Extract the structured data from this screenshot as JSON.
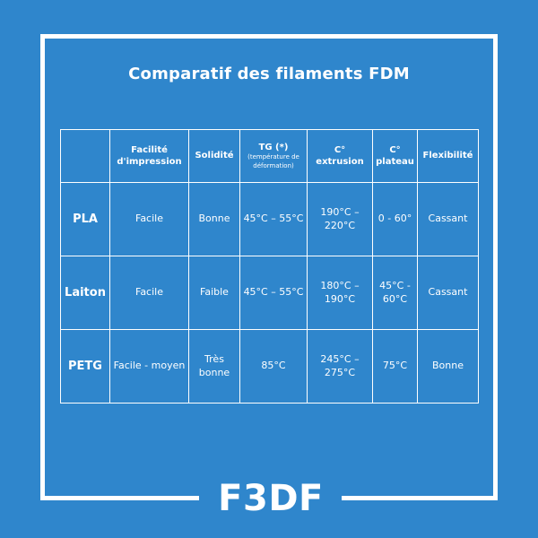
{
  "title": "Comparatif des filaments FDM",
  "table": {
    "headers": [
      {
        "label": "",
        "sub": ""
      },
      {
        "label": "Facilité d'impression",
        "sub": ""
      },
      {
        "label": "Solidité",
        "sub": ""
      },
      {
        "label": "TG (*)",
        "sub": "(température de déformation)"
      },
      {
        "label": "C° extrusion",
        "sub": ""
      },
      {
        "label": "C° plateau",
        "sub": ""
      },
      {
        "label": "Flexibilité",
        "sub": ""
      }
    ],
    "rows": [
      {
        "name": "PLA",
        "cells": [
          "Facile",
          "Bonne",
          "45°C – 55°C",
          "190°C – 220°C",
          "0 - 60°",
          "Cassant"
        ]
      },
      {
        "name": "Laiton",
        "cells": [
          "Facile",
          "Faible",
          "45°C – 55°C",
          "180°C – 190°C",
          "45°C - 60°C",
          "Cassant"
        ]
      },
      {
        "name": "PETG",
        "cells": [
          "Facile - moyen",
          "Très bonne",
          "85°C",
          "245°C – 275°C",
          "75°C",
          "Bonne"
        ]
      }
    ]
  },
  "logo": "F3DF",
  "colors": {
    "background": "#2f86cc",
    "foreground": "#ffffff"
  }
}
